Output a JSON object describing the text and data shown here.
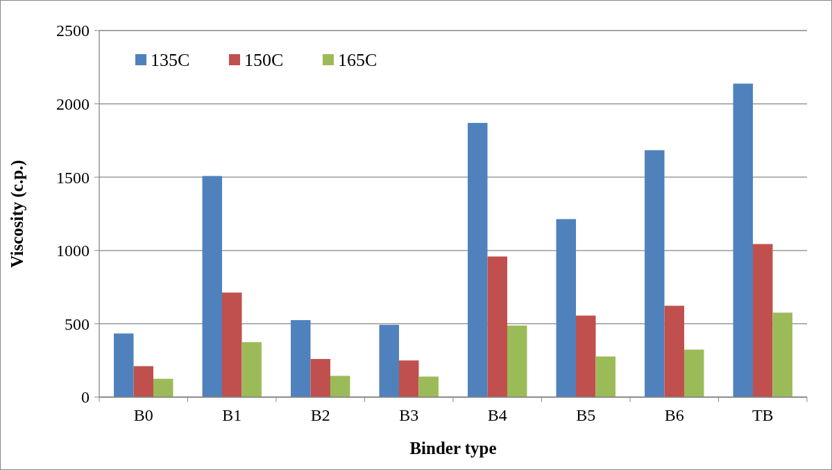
{
  "chart_data": {
    "type": "bar",
    "xlabel": "Binder type",
    "ylabel": "Viscosity (c.p.)",
    "categories": [
      "B0",
      "B1",
      "B2",
      "B3",
      "B4",
      "B5",
      "B6",
      "TB"
    ],
    "series": [
      {
        "name": "135C",
        "color": "#4f81bd",
        "values": [
          434,
          1508,
          525,
          493,
          1870,
          1214,
          1684,
          2138
        ]
      },
      {
        "name": "150C",
        "color": "#c0504d",
        "values": [
          211,
          713,
          260,
          250,
          959,
          556,
          623,
          1044
        ]
      },
      {
        "name": "165C",
        "color": "#9bbb59",
        "values": [
          125,
          375,
          145,
          140,
          488,
          277,
          324,
          576
        ]
      }
    ],
    "ylim": [
      0,
      2500
    ],
    "yticks": [
      0,
      500,
      1000,
      1500,
      2000,
      2500
    ],
    "grid": "y",
    "legend": "top left"
  }
}
